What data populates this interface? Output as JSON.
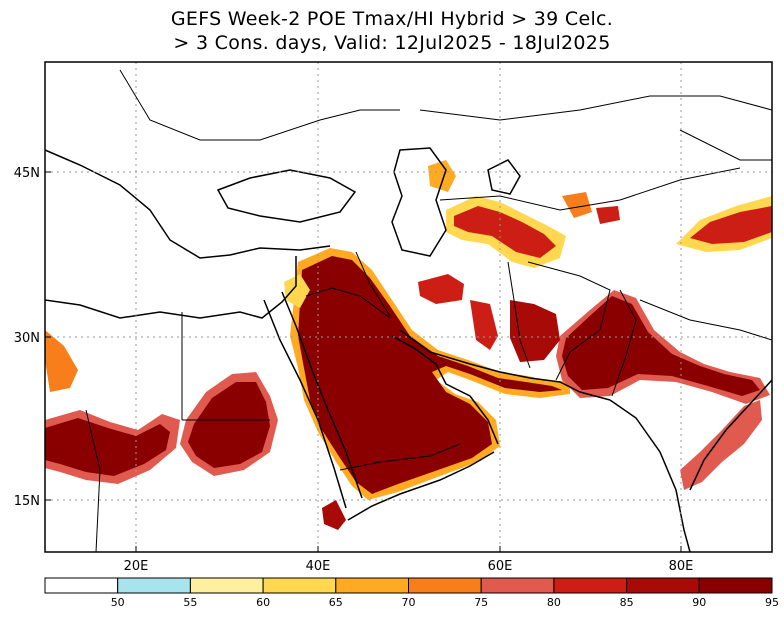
{
  "title": {
    "line1": "GEFS Week-2 POE Tmax/HI Hybrid > 39 Celc.",
    "line2": "> 3 Cons. days, Valid: 12Jul2025 - 18Jul2025"
  },
  "axes": {
    "lon_ticks": [
      "20E",
      "40E",
      "60E",
      "80E"
    ],
    "lat_ticks": [
      "45N",
      "30N",
      "15N"
    ]
  },
  "legend": {
    "levels": [
      "50",
      "55",
      "60",
      "65",
      "70",
      "75",
      "80",
      "85",
      "90",
      "95"
    ],
    "colors": [
      "#ffffff",
      "#a8e4ee",
      "#fff0a0",
      "#ffd850",
      "#ffaa22",
      "#f77e1a",
      "#e05a50",
      "#cc1e14",
      "#a80a08",
      "#8a0000"
    ]
  },
  "palette": {
    "p55": "#a8e4ee",
    "p60": "#fff0a0",
    "p65": "#ffd850",
    "p70": "#ffaa22",
    "p75": "#f77e1a",
    "p80": "#e05a50",
    "p85": "#cc1e14",
    "p90": "#a80a08",
    "p95": "#8a0000"
  }
}
